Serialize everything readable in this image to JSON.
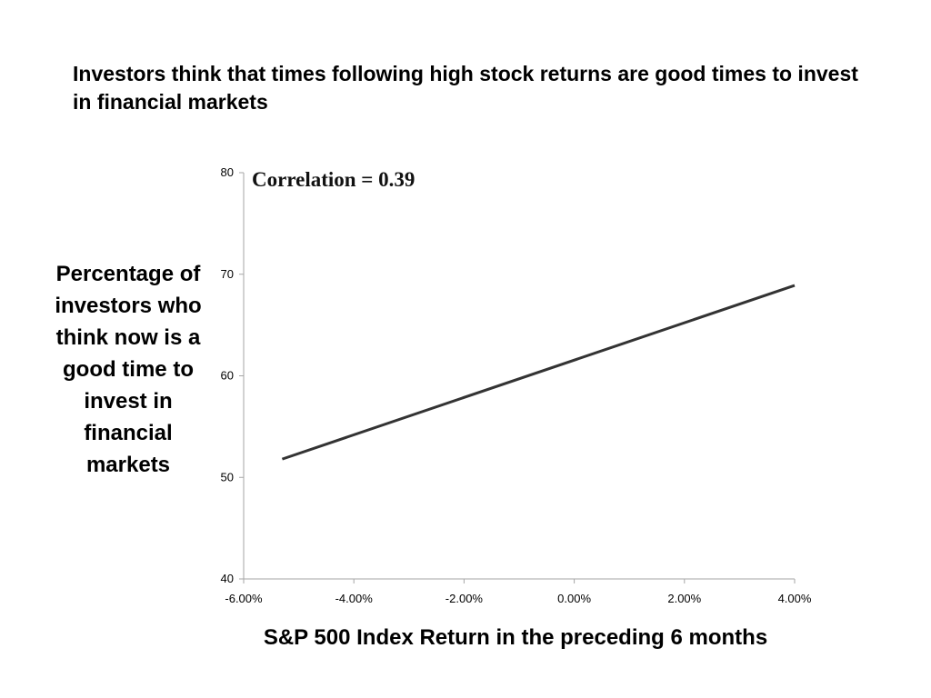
{
  "slide": {
    "title": "Investors think that times following high stock returns are good times to invest in financial markets"
  },
  "chart_data": {
    "type": "line",
    "title": "",
    "xlabel": "S&P 500 Index Return in the preceding 6 months",
    "ylabel": "Percentage of investors who think now is a good time to invest in financial markets",
    "annotation": "Correlation = 0.39",
    "xlim": [
      -0.06,
      0.04
    ],
    "ylim": [
      40,
      80
    ],
    "x_ticks": [
      -0.06,
      -0.04,
      -0.02,
      0.0,
      0.02,
      0.04
    ],
    "x_tick_labels": [
      "-6.00%",
      "-4.00%",
      "-2.00%",
      "0.00%",
      "2.00%",
      "4.00%"
    ],
    "y_ticks": [
      40,
      50,
      60,
      70,
      80
    ],
    "y_tick_labels": [
      "40",
      "50",
      "60",
      "70",
      "80"
    ],
    "grid": false,
    "legend": "none",
    "series": [
      {
        "x": [
          -0.053,
          0.04
        ],
        "y": [
          51.8,
          68.9
        ],
        "color": "#333333"
      }
    ]
  }
}
